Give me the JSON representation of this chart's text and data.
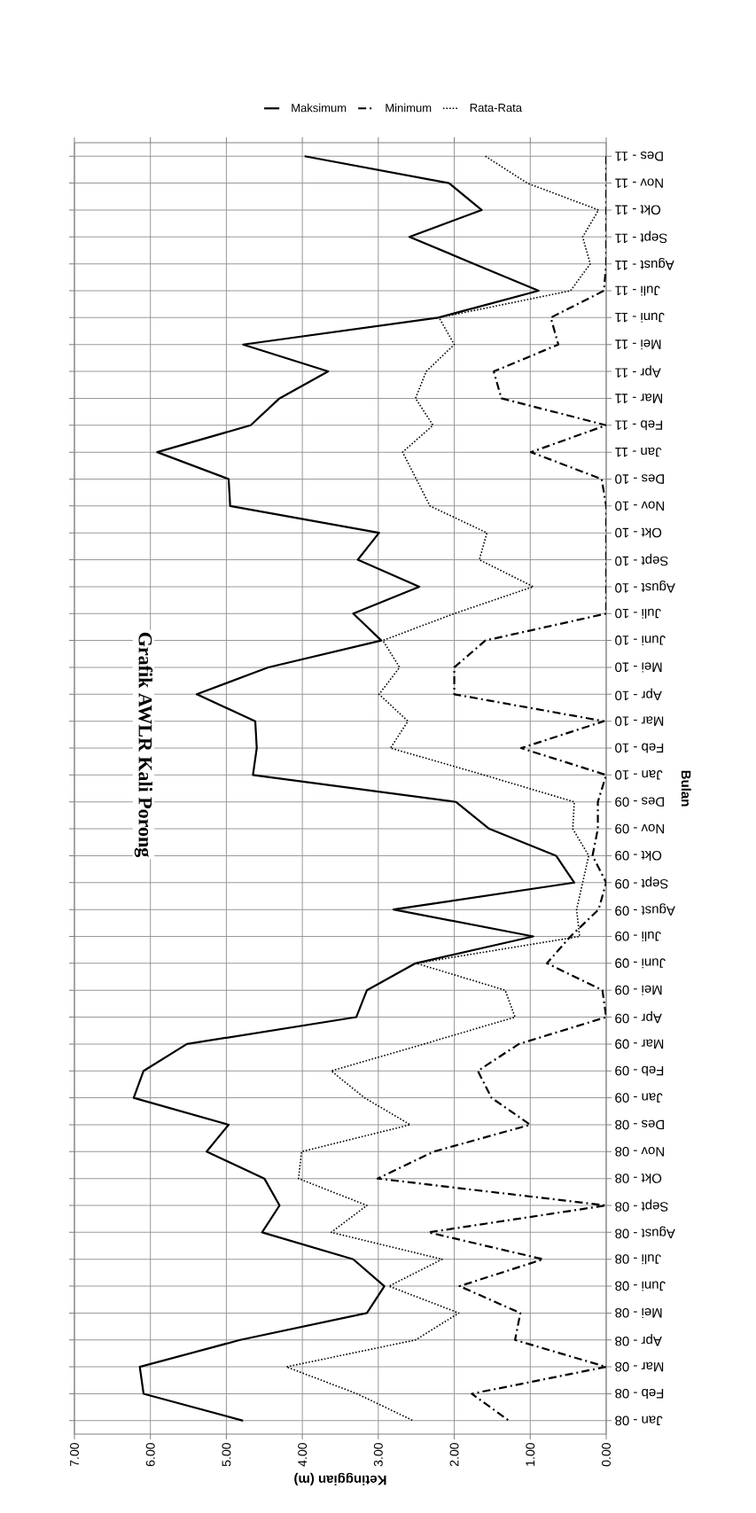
{
  "chart_data": {
    "type": "line",
    "orientation": "horizontal",
    "title": "Grafik AWLR Kali Porong",
    "xlabel": "Ketinggian (m)",
    "ylabel": "Bulan",
    "categories": [
      "Des - 11",
      "Nov - 11",
      "Okt - 11",
      "Sept - 11",
      "Agust - 11",
      "Juli - 11",
      "Juni - 11",
      "Mei - 11",
      "Apr - 11",
      "Mar - 11",
      "Feb - 11",
      "Jan - 11",
      "Des - 10",
      "Nov - 10",
      "Okt - 10",
      "Sept - 10",
      "Agust - 10",
      "Juli - 10",
      "Juni - 10",
      "Mei - 10",
      "Apr - 10",
      "Mar - 10",
      "Feb - 10",
      "Jan - 10",
      "Des - 09",
      "Nov - 09",
      "Okt - 09",
      "Sept - 09",
      "Agust - 09",
      "Juli - 09",
      "Juni - 09",
      "Mei - 09",
      "Apr - 09",
      "Mar - 09",
      "Feb - 09",
      "Jan - 09",
      "Des - 08",
      "Nov - 08",
      "Okt - 08",
      "Sept - 08",
      "Agust - 08",
      "Juli - 08",
      "Juni - 08",
      "Mei - 08",
      "Apr - 08",
      "Mar - 08",
      "Feb - 08",
      "Jan - 08"
    ],
    "series": [
      {
        "name": "Maksimum",
        "color": "#000000",
        "line_style": "solid",
        "values": [
          3.97,
          2.07,
          1.64,
          2.59,
          1.74,
          0.89,
          2.21,
          4.78,
          3.66,
          4.3,
          4.68,
          5.91,
          4.97,
          4.95,
          2.99,
          3.27,
          2.46,
          3.33,
          2.96,
          4.45,
          5.39,
          4.62,
          4.6,
          4.65,
          1.98,
          1.54,
          0.66,
          0.42,
          2.8,
          0.96,
          2.51,
          3.15,
          3.29,
          5.52,
          6.09,
          6.22,
          4.97,
          5.26,
          4.5,
          4.3,
          4.53,
          3.33,
          2.92,
          3.15,
          4.82,
          6.14,
          6.09,
          4.78
        ]
      },
      {
        "name": "Minimum",
        "color": "#000000",
        "line_style": "dashdot",
        "values": [
          0.0,
          0.0,
          0.0,
          0.0,
          0.0,
          0.03,
          0.73,
          0.63,
          1.48,
          1.38,
          0.0,
          0.99,
          0.06,
          0.0,
          0.0,
          0.0,
          0.0,
          0.0,
          1.59,
          2.0,
          2.0,
          0.03,
          1.12,
          0.0,
          0.11,
          0.11,
          0.18,
          0.0,
          0.1,
          0.47,
          0.78,
          0.05,
          0.0,
          1.15,
          1.69,
          1.51,
          1.0,
          2.27,
          3.01,
          0.0,
          2.34,
          0.83,
          1.93,
          1.13,
          1.2,
          0.0,
          1.77,
          1.28
        ]
      },
      {
        "name": "Rata-Rata",
        "color": "#000000",
        "line_style": "dotted",
        "values": [
          1.59,
          1.04,
          0.1,
          0.31,
          0.21,
          0.47,
          2.2,
          2.0,
          2.37,
          2.51,
          2.28,
          2.68,
          2.5,
          2.32,
          1.57,
          1.67,
          0.96,
          2.0,
          2.94,
          2.72,
          2.99,
          2.61,
          2.84,
          1.61,
          0.42,
          0.44,
          0.23,
          0.31,
          0.39,
          0.35,
          2.5,
          1.33,
          1.2,
          2.4,
          3.62,
          3.18,
          2.58,
          4.01,
          4.05,
          3.15,
          3.62,
          2.16,
          2.86,
          1.94,
          2.51,
          4.21,
          3.28,
          2.54
        ]
      }
    ],
    "xlim": [
      7,
      0
    ],
    "xticks": [
      {
        "value": 0,
        "label": "0.00"
      },
      {
        "value": 1,
        "label": "1.00"
      },
      {
        "value": 2,
        "label": "2.00"
      },
      {
        "value": 3,
        "label": "3.00"
      },
      {
        "value": 4,
        "label": "4.00"
      },
      {
        "value": 5,
        "label": "5.00"
      },
      {
        "value": 6,
        "label": "6.00"
      },
      {
        "value": 7,
        "label": "7.00"
      }
    ],
    "grid": true,
    "legend": "top",
    "marker": "none"
  }
}
